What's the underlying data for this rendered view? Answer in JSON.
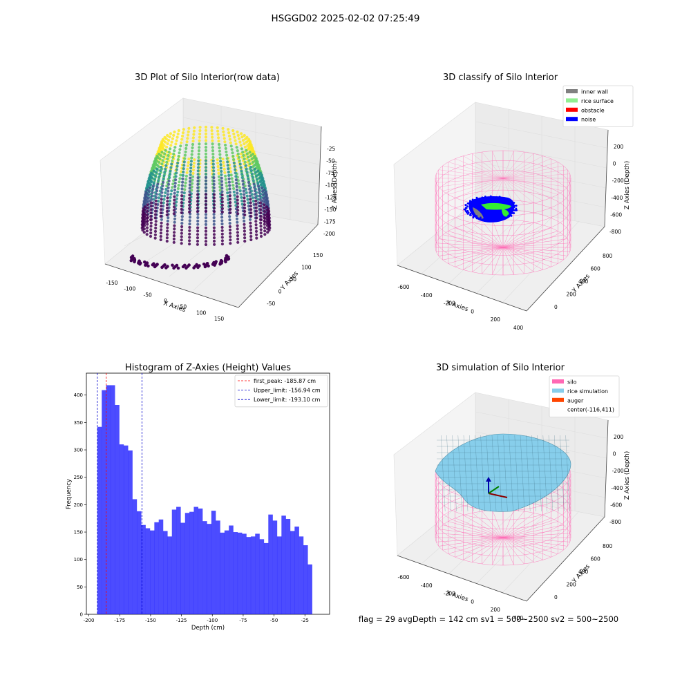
{
  "figure": {
    "suptitle": "HSGGD02 2025-02-02 07:25:49",
    "status_line": "flag = 29  avgDepth = 142 cm  sv1 = 500~2500  sv2 = 500~2500"
  },
  "panels": {
    "raw": {
      "title": "3D Plot of Silo Interior(row data)",
      "xlabel": "X Axies",
      "ylabel": "Y Axies",
      "zlabel": "Z Axies (Depth)",
      "xticks": [
        "-150",
        "-100",
        "-50",
        "0",
        "50",
        "100",
        "150"
      ],
      "yticks": [
        "-50",
        "0",
        "50",
        "100",
        "150"
      ],
      "zticks": [
        "-25",
        "-50",
        "-75",
        "-100",
        "-125",
        "-150",
        "-175",
        "-200"
      ],
      "colormap": [
        "#440154",
        "#3b528b",
        "#21918c",
        "#5ec962",
        "#fde725"
      ]
    },
    "classify": {
      "title": "3D classify of Silo Interior",
      "xlabel": "X Axies",
      "ylabel": "Y Axies",
      "zlabel": "Z Axies (Depth)",
      "xticks": [
        "-600",
        "-400",
        "-200",
        "0",
        "200",
        "400"
      ],
      "yticks": [
        "0",
        "200",
        "400",
        "600",
        "800"
      ],
      "zticks": [
        "200",
        "0",
        "-200",
        "-400",
        "-600",
        "-800"
      ],
      "legend": [
        {
          "label": "inner wall",
          "color": "#808080"
        },
        {
          "label": "rice surface",
          "color": "#90ee90"
        },
        {
          "label": "obstacle",
          "color": "#ff0000"
        },
        {
          "label": "noise",
          "color": "#0000ff"
        }
      ],
      "wire_color": "#ff69b4"
    },
    "simulation": {
      "title": "3D simulation of Silo Interior",
      "xlabel": "X Axies",
      "ylabel": "Y Axies",
      "zlabel": "Z Axies (Depth)",
      "xticks": [
        "-600",
        "-400",
        "-200",
        "0",
        "200",
        "400"
      ],
      "yticks": [
        "0",
        "200",
        "400",
        "600",
        "800"
      ],
      "zticks": [
        "200",
        "0",
        "-200",
        "-400",
        "-600",
        "-800"
      ],
      "legend": [
        {
          "label": "silo",
          "color": "#ff69b4"
        },
        {
          "label": "rice simulation",
          "color": "#87ceeb"
        },
        {
          "label": "auger",
          "color": "#ff4500"
        },
        {
          "label": "center(-116,411)",
          "color": ""
        }
      ],
      "surface_color": "#87ceeb"
    }
  },
  "chart_data": {
    "type": "bar",
    "title": "Histogram of Z-Axies (Height) Values",
    "xlabel": "Depth (cm)",
    "ylabel": "Frequency",
    "bin_start": -193.1,
    "bin_width": 3.55,
    "counts": [
      342,
      409,
      418,
      418,
      382,
      310,
      308,
      299,
      210,
      188,
      163,
      157,
      153,
      168,
      173,
      152,
      142,
      191,
      196,
      167,
      185,
      187,
      196,
      193,
      170,
      165,
      189,
      171,
      149,
      153,
      162,
      150,
      149,
      147,
      141,
      142,
      147,
      137,
      130,
      182,
      171,
      142,
      180,
      174,
      152,
      160,
      142,
      126,
      91
    ],
    "bar_color": "#0000ff",
    "xlim": [
      -202,
      -5
    ],
    "ylim": [
      0,
      440
    ],
    "xticks": [
      -200,
      -175,
      -150,
      -125,
      -100,
      -75,
      -50,
      -25
    ],
    "yticks": [
      0,
      50,
      100,
      150,
      200,
      250,
      300,
      350,
      400
    ],
    "vlines": [
      {
        "label": "first_peak: -185.87 cm",
        "x": -185.87,
        "color": "#ff0000"
      },
      {
        "label": "Upper_limit: -156.94 cm",
        "x": -156.94,
        "color": "#0000cc"
      },
      {
        "label": "Lower_limit: -193.10 cm",
        "x": -193.1,
        "color": "#0000cc"
      }
    ],
    "legend_position": "top-right",
    "grid": false
  }
}
